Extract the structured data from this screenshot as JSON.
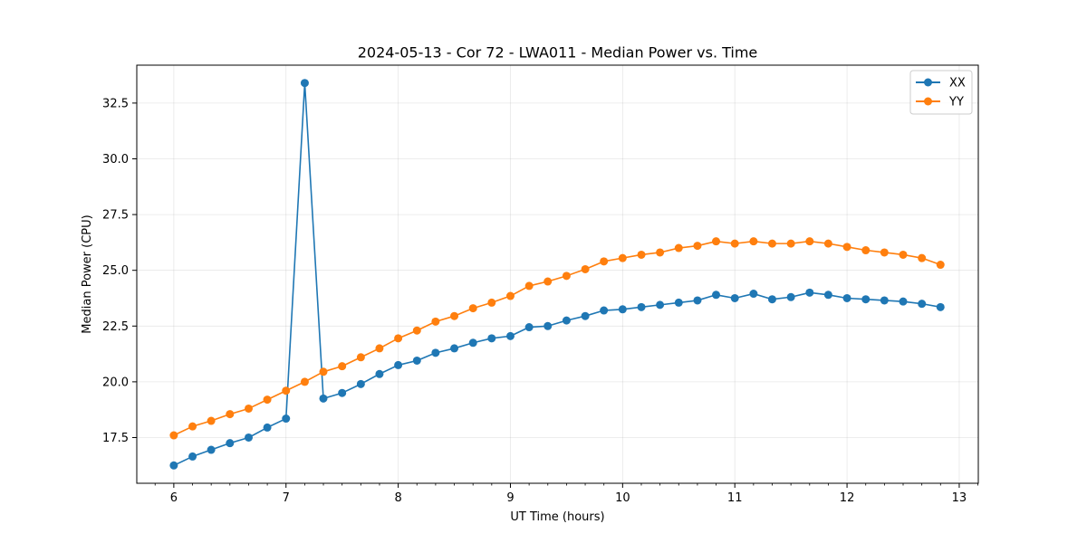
{
  "chart_data": {
    "type": "line",
    "title": "2024-05-13 - Cor 72 - LWA011 - Median Power vs. Time",
    "xlabel": "UT Time (hours)",
    "ylabel": "Median Power (CPU)",
    "xlim": [
      5.67,
      13.17
    ],
    "ylim": [
      15.45,
      34.2
    ],
    "xticks": [
      6,
      7,
      8,
      9,
      10,
      11,
      12,
      13
    ],
    "yticks": [
      17.5,
      20.0,
      22.5,
      25.0,
      27.5,
      30.0,
      32.5
    ],
    "ytick_labels": [
      "17.5",
      "20.0",
      "22.5",
      "25.0",
      "27.5",
      "30.0",
      "32.5"
    ],
    "grid": true,
    "legend_position": "top-right",
    "x": [
      6.0,
      6.167,
      6.333,
      6.5,
      6.667,
      6.833,
      7.0,
      7.167,
      7.333,
      7.5,
      7.667,
      7.833,
      8.0,
      8.167,
      8.333,
      8.5,
      8.667,
      8.833,
      9.0,
      9.167,
      9.333,
      9.5,
      9.667,
      9.833,
      10.0,
      10.167,
      10.333,
      10.5,
      10.667,
      10.833,
      11.0,
      11.167,
      11.333,
      11.5,
      11.667,
      11.833,
      12.0,
      12.167,
      12.333,
      12.5,
      12.667,
      12.833
    ],
    "series": [
      {
        "name": "XX",
        "color": "#1f77b4",
        "values": [
          16.25,
          16.65,
          16.95,
          17.25,
          17.5,
          17.95,
          18.35,
          33.4,
          19.25,
          19.5,
          19.9,
          20.35,
          20.75,
          20.95,
          21.3,
          21.5,
          21.75,
          21.95,
          22.05,
          22.45,
          22.5,
          22.75,
          22.95,
          23.2,
          23.25,
          23.35,
          23.45,
          23.55,
          23.65,
          23.9,
          23.75,
          23.95,
          23.7,
          23.8,
          24.0,
          23.9,
          23.75,
          23.7,
          23.65,
          23.6,
          23.5,
          23.35
        ]
      },
      {
        "name": "YY",
        "color": "#ff7f0e",
        "values": [
          17.6,
          18.0,
          18.25,
          18.55,
          18.8,
          19.2,
          19.6,
          20.0,
          20.45,
          20.7,
          21.1,
          21.5,
          21.95,
          22.3,
          22.7,
          22.95,
          23.3,
          23.55,
          23.85,
          24.3,
          24.5,
          24.75,
          25.05,
          25.4,
          25.55,
          25.7,
          25.8,
          26.0,
          26.1,
          26.3,
          26.2,
          26.3,
          26.2,
          26.2,
          26.3,
          26.2,
          26.05,
          25.9,
          25.8,
          25.7,
          25.55,
          25.25
        ]
      }
    ]
  }
}
